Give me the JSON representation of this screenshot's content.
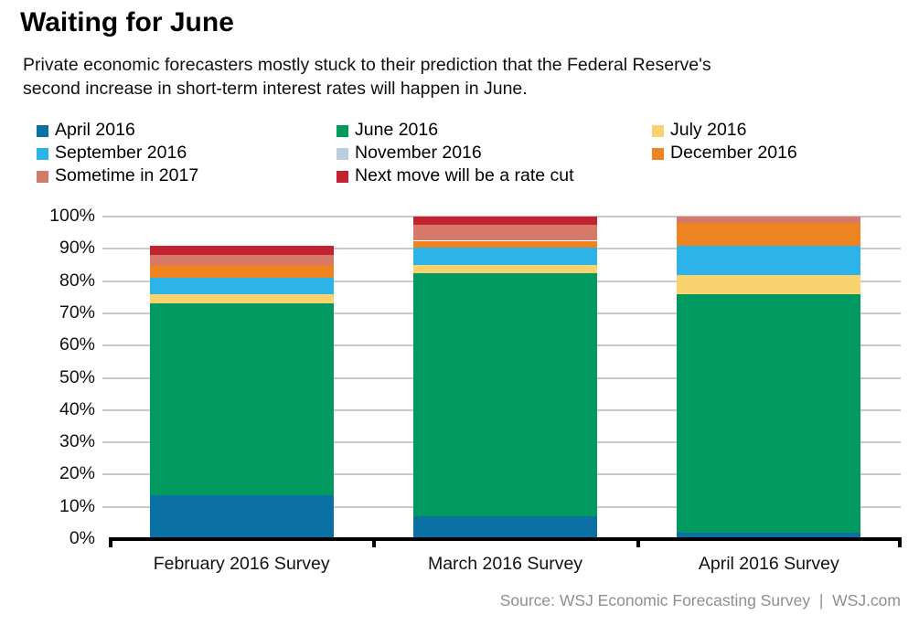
{
  "header": {
    "title": "Waiting for June",
    "subtitle_line1": "Private economic forecasters mostly stuck to their prediction that the Federal Reserve's",
    "subtitle_line2": "second increase in short-term interest rates will happen in June."
  },
  "source_line": "Source: WSJ Economic Forecasting Survey  |  WSJ.com",
  "colors": {
    "gridline": "#c9c9c9",
    "axis": "#000000",
    "source_text": "#8f8f8f"
  },
  "chart_data": {
    "type": "bar",
    "stacked": true,
    "title": "Waiting for June",
    "categories": [
      "February 2016 Survey",
      "March 2016 Survey",
      "April 2016 Survey"
    ],
    "series": [
      {
        "name": "April 2016",
        "color": "#0a6fa3",
        "values": [
          13.5,
          7,
          2
        ]
      },
      {
        "name": "June 2016",
        "color": "#009a60",
        "values": [
          59.5,
          75.5,
          74
        ]
      },
      {
        "name": "July 2016",
        "color": "#fad36e",
        "values": [
          3,
          2.5,
          6
        ]
      },
      {
        "name": "September 2016",
        "color": "#2cb4e8",
        "values": [
          5,
          5.5,
          9
        ]
      },
      {
        "name": "November 2016",
        "color": "#b9cedb",
        "values": [
          0,
          0,
          0
        ]
      },
      {
        "name": "December 2016",
        "color": "#ee8322",
        "values": [
          4,
          2,
          7
        ]
      },
      {
        "name": "Sometime in 2017",
        "color": "#d7796a",
        "values": [
          3,
          5,
          2
        ]
      },
      {
        "name": "Next move will be a rate cut",
        "color": "#c32330",
        "values": [
          3,
          2.5,
          0
        ]
      }
    ],
    "stack_order": "bottom-to-top as listed",
    "bar_totals": [
      91,
      100,
      100
    ],
    "ylim": [
      0,
      100
    ],
    "yticks": [
      "0%",
      "10%",
      "20%",
      "30%",
      "40%",
      "50%",
      "60%",
      "70%",
      "80%",
      "90%",
      "100%"
    ],
    "grid": true,
    "legend_position": "top"
  }
}
